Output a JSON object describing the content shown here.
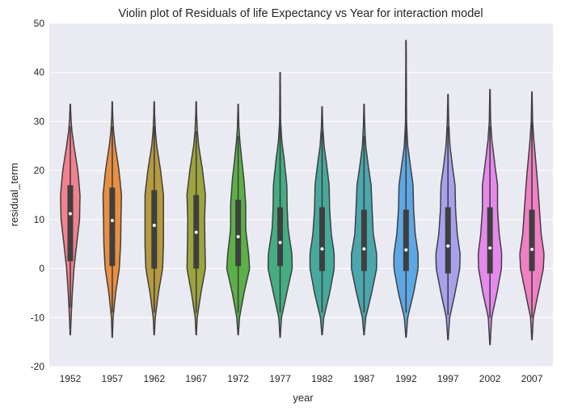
{
  "chart_data": {
    "type": "violin",
    "title": "Violin plot of Residuals of life Expectancy vs Year for interaction model",
    "xlabel": "year",
    "ylabel": "residual_term",
    "ylim": [
      -20,
      50
    ],
    "yticks": [
      -20,
      -10,
      0,
      10,
      20,
      30,
      40,
      50
    ],
    "grid": true,
    "background": "#eaeaf2",
    "categories": [
      "1952",
      "1957",
      "1962",
      "1967",
      "1972",
      "1977",
      "1982",
      "1987",
      "1992",
      "1997",
      "2002",
      "2007"
    ],
    "colors": [
      "#f28190",
      "#e98f3f",
      "#b59a3e",
      "#9ea43d",
      "#5bb046",
      "#44ad82",
      "#45aa9d",
      "#4aa7ad",
      "#5da8e4",
      "#a9a1ee",
      "#e589ec",
      "#f07fc3"
    ],
    "series": [
      {
        "name": "1952",
        "min": -13.5,
        "max": 33.5,
        "q1": 1.5,
        "q3": 17,
        "median": 11.2,
        "inner_min": -8,
        "inner_max": 29,
        "profile": [
          [
            -13.5,
            0.01
          ],
          [
            -10,
            0.05
          ],
          [
            -5,
            0.12
          ],
          [
            0,
            0.22
          ],
          [
            5,
            0.38
          ],
          [
            10,
            0.55
          ],
          [
            15,
            0.58
          ],
          [
            20,
            0.45
          ],
          [
            25,
            0.22
          ],
          [
            28,
            0.1
          ],
          [
            30,
            0.05
          ],
          [
            33.5,
            0.01
          ]
        ]
      },
      {
        "name": "1957",
        "min": -14,
        "max": 34,
        "q1": 0.5,
        "q3": 16.5,
        "median": 9.8,
        "inner_min": -9,
        "inner_max": 29,
        "profile": [
          [
            -14,
            0.01
          ],
          [
            -10,
            0.05
          ],
          [
            -5,
            0.2
          ],
          [
            0,
            0.42
          ],
          [
            5,
            0.5
          ],
          [
            10,
            0.52
          ],
          [
            15,
            0.55
          ],
          [
            20,
            0.4
          ],
          [
            25,
            0.18
          ],
          [
            28,
            0.08
          ],
          [
            31,
            0.03
          ],
          [
            34,
            0.01
          ]
        ]
      },
      {
        "name": "1962",
        "min": -13.5,
        "max": 34,
        "q1": 0,
        "q3": 16,
        "median": 8.8,
        "inner_min": -9,
        "inner_max": 29,
        "profile": [
          [
            -13.5,
            0.01
          ],
          [
            -10,
            0.06
          ],
          [
            -5,
            0.25
          ],
          [
            0,
            0.5
          ],
          [
            5,
            0.55
          ],
          [
            10,
            0.55
          ],
          [
            15,
            0.55
          ],
          [
            20,
            0.38
          ],
          [
            25,
            0.15
          ],
          [
            28,
            0.07
          ],
          [
            31,
            0.03
          ],
          [
            34,
            0.01
          ]
        ]
      },
      {
        "name": "1967",
        "min": -13.5,
        "max": 34,
        "q1": 0,
        "q3": 15,
        "median": 7.4,
        "inner_min": -9,
        "inner_max": 28,
        "profile": [
          [
            -13.5,
            0.01
          ],
          [
            -10,
            0.06
          ],
          [
            -5,
            0.28
          ],
          [
            0,
            0.55
          ],
          [
            5,
            0.52
          ],
          [
            10,
            0.5
          ],
          [
            15,
            0.55
          ],
          [
            20,
            0.38
          ],
          [
            25,
            0.15
          ],
          [
            28,
            0.07
          ],
          [
            31,
            0.03
          ],
          [
            34,
            0.01
          ]
        ]
      },
      {
        "name": "1972",
        "min": -13.5,
        "max": 33.5,
        "q1": 0.5,
        "q3": 14,
        "median": 6.5,
        "inner_min": -9,
        "inner_max": 27,
        "profile": [
          [
            -13.5,
            0.01
          ],
          [
            -10,
            0.08
          ],
          [
            -5,
            0.35
          ],
          [
            0,
            0.68
          ],
          [
            3,
            0.62
          ],
          [
            8,
            0.45
          ],
          [
            13,
            0.45
          ],
          [
            18,
            0.35
          ],
          [
            22,
            0.22
          ],
          [
            26,
            0.1
          ],
          [
            29,
            0.04
          ],
          [
            33.5,
            0.01
          ]
        ]
      },
      {
        "name": "1977",
        "min": -14,
        "max": 40,
        "q1": 0.5,
        "q3": 12.5,
        "median": 5.3,
        "inner_min": -9,
        "inner_max": 29,
        "profile": [
          [
            -14,
            0.01
          ],
          [
            -10,
            0.08
          ],
          [
            -5,
            0.4
          ],
          [
            0,
            0.72
          ],
          [
            3,
            0.7
          ],
          [
            8,
            0.48
          ],
          [
            12,
            0.42
          ],
          [
            17,
            0.4
          ],
          [
            22,
            0.25
          ],
          [
            26,
            0.1
          ],
          [
            30,
            0.03
          ],
          [
            35,
            0.02
          ],
          [
            40,
            0.01
          ]
        ]
      },
      {
        "name": "1982",
        "min": -13.5,
        "max": 33,
        "q1": -0.5,
        "q3": 12.5,
        "median": 4.0,
        "inner_min": -9,
        "inner_max": 28,
        "profile": [
          [
            -13.5,
            0.01
          ],
          [
            -10,
            0.1
          ],
          [
            -5,
            0.45
          ],
          [
            0,
            0.72
          ],
          [
            3,
            0.72
          ],
          [
            7,
            0.55
          ],
          [
            12,
            0.45
          ],
          [
            17,
            0.42
          ],
          [
            21,
            0.28
          ],
          [
            25,
            0.12
          ],
          [
            29,
            0.04
          ],
          [
            33,
            0.01
          ]
        ]
      },
      {
        "name": "1987",
        "min": -13.5,
        "max": 33.5,
        "q1": -0.5,
        "q3": 12,
        "median": 4.0,
        "inner_min": -9,
        "inner_max": 27,
        "profile": [
          [
            -13.5,
            0.01
          ],
          [
            -10,
            0.1
          ],
          [
            -5,
            0.45
          ],
          [
            0,
            0.75
          ],
          [
            3,
            0.75
          ],
          [
            7,
            0.55
          ],
          [
            12,
            0.48
          ],
          [
            17,
            0.42
          ],
          [
            21,
            0.25
          ],
          [
            25,
            0.1
          ],
          [
            29,
            0.04
          ],
          [
            33.5,
            0.01
          ]
        ]
      },
      {
        "name": "1992",
        "min": -14,
        "max": 46.5,
        "q1": -0.5,
        "q3": 12,
        "median": 3.8,
        "inner_min": -9,
        "inner_max": 30,
        "profile": [
          [
            -14,
            0.01
          ],
          [
            -10,
            0.1
          ],
          [
            -5,
            0.45
          ],
          [
            0,
            0.72
          ],
          [
            3,
            0.72
          ],
          [
            7,
            0.55
          ],
          [
            12,
            0.45
          ],
          [
            17,
            0.42
          ],
          [
            21,
            0.26
          ],
          [
            25,
            0.1
          ],
          [
            30,
            0.03
          ],
          [
            38,
            0.02
          ],
          [
            46.5,
            0.01
          ]
        ]
      },
      {
        "name": "1997",
        "min": -14.5,
        "max": 35.5,
        "q1": -1,
        "q3": 12.5,
        "median": 4.6,
        "inner_min": -9.5,
        "inner_max": 29,
        "profile": [
          [
            -14.5,
            0.01
          ],
          [
            -10,
            0.1
          ],
          [
            -5,
            0.42
          ],
          [
            0,
            0.7
          ],
          [
            3,
            0.72
          ],
          [
            7,
            0.55
          ],
          [
            12,
            0.45
          ],
          [
            17,
            0.42
          ],
          [
            21,
            0.26
          ],
          [
            25,
            0.12
          ],
          [
            30,
            0.04
          ],
          [
            35.5,
            0.01
          ]
        ]
      },
      {
        "name": "2002",
        "min": -15.5,
        "max": 36.5,
        "q1": -1,
        "q3": 12.5,
        "median": 4.2,
        "inner_min": -10,
        "inner_max": 29,
        "profile": [
          [
            -15.5,
            0.01
          ],
          [
            -10,
            0.1
          ],
          [
            -5,
            0.42
          ],
          [
            0,
            0.68
          ],
          [
            3,
            0.7
          ],
          [
            7,
            0.55
          ],
          [
            12,
            0.45
          ],
          [
            17,
            0.45
          ],
          [
            21,
            0.3
          ],
          [
            26,
            0.12
          ],
          [
            30,
            0.04
          ],
          [
            36.5,
            0.01
          ]
        ]
      },
      {
        "name": "2007",
        "min": -14.5,
        "max": 36,
        "q1": -0.5,
        "q3": 12,
        "median": 3.9,
        "inner_min": -10,
        "inner_max": 30,
        "profile": [
          [
            -14.5,
            0.01
          ],
          [
            -10,
            0.08
          ],
          [
            -5,
            0.38
          ],
          [
            0,
            0.68
          ],
          [
            3,
            0.72
          ],
          [
            7,
            0.55
          ],
          [
            12,
            0.45
          ],
          [
            17,
            0.35
          ],
          [
            21,
            0.25
          ],
          [
            26,
            0.12
          ],
          [
            30,
            0.04
          ],
          [
            36,
            0.01
          ]
        ]
      }
    ]
  }
}
